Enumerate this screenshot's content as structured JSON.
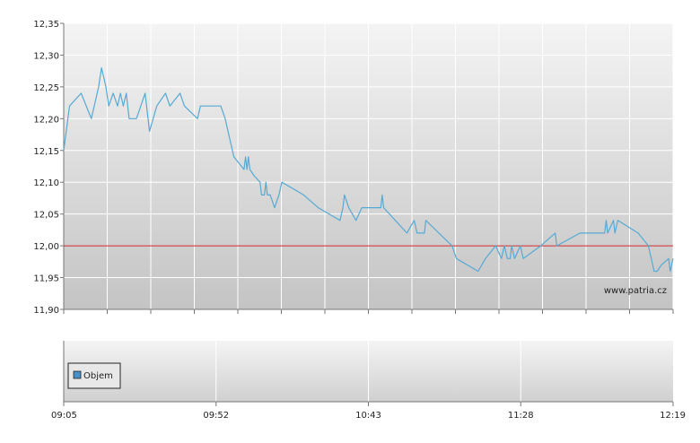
{
  "chart_data": [
    {
      "type": "line",
      "title": "",
      "xlabel": "",
      "ylabel": "",
      "ylim": [
        11.9,
        12.35
      ],
      "y_ticks": [
        "12,35",
        "12,30",
        "12,25",
        "12,20",
        "12,15",
        "12,10",
        "12,05",
        "12,00",
        "11,95",
        "11,90"
      ],
      "reference_line": {
        "y": 12.0,
        "color": "#cc2222"
      },
      "watermark": "www.patria.cz",
      "grid": true,
      "series": [
        {
          "color": "#55aad4",
          "points": [
            [
              0,
              12.15
            ],
            [
              4,
              12.22
            ],
            [
              12,
              12.24
            ],
            [
              19,
              12.2
            ],
            [
              24,
              12.25
            ],
            [
              26,
              12.28
            ],
            [
              28,
              12.26
            ],
            [
              29,
              12.25
            ],
            [
              31,
              12.22
            ],
            [
              34,
              12.24
            ],
            [
              37,
              12.22
            ],
            [
              39,
              12.24
            ],
            [
              41,
              12.22
            ],
            [
              43,
              12.24
            ],
            [
              45,
              12.2
            ],
            [
              50,
              12.2
            ],
            [
              53,
              12.22
            ],
            [
              56,
              12.24
            ],
            [
              59,
              12.18
            ],
            [
              64,
              12.22
            ],
            [
              70,
              12.24
            ],
            [
              73,
              12.22
            ],
            [
              80,
              12.24
            ],
            [
              83,
              12.22
            ],
            [
              92,
              12.2
            ],
            [
              94,
              12.22
            ],
            [
              101,
              12.22
            ],
            [
              108,
              12.22
            ],
            [
              111,
              12.2
            ],
            [
              113,
              12.18
            ],
            [
              117,
              12.14
            ],
            [
              124,
              12.12
            ],
            [
              125,
              12.14
            ],
            [
              126,
              12.12
            ],
            [
              127,
              12.14
            ],
            [
              128,
              12.12
            ],
            [
              131,
              12.11
            ],
            [
              135,
              12.1
            ],
            [
              136,
              12.08
            ],
            [
              138,
              12.08
            ],
            [
              139,
              12.1
            ],
            [
              140,
              12.08
            ],
            [
              142,
              12.08
            ],
            [
              145,
              12.06
            ],
            [
              148,
              12.08
            ],
            [
              150,
              12.1
            ],
            [
              165,
              12.08
            ],
            [
              175,
              12.06
            ],
            [
              190,
              12.04
            ],
            [
              192,
              12.06
            ],
            [
              193,
              12.08
            ],
            [
              196,
              12.06
            ],
            [
              201,
              12.04
            ],
            [
              205,
              12.06
            ],
            [
              218,
              12.06
            ],
            [
              219,
              12.08
            ],
            [
              220,
              12.06
            ],
            [
              228,
              12.04
            ],
            [
              236,
              12.02
            ],
            [
              241,
              12.04
            ],
            [
              243,
              12.02
            ],
            [
              246,
              12.02
            ],
            [
              248,
              12.02
            ],
            [
              249,
              12.04
            ],
            [
              258,
              12.02
            ],
            [
              267,
              12.0
            ],
            [
              270,
              11.98
            ],
            [
              285,
              11.96
            ],
            [
              290,
              11.98
            ],
            [
              297,
              12.0
            ],
            [
              301,
              11.98
            ],
            [
              303,
              12.0
            ],
            [
              305,
              11.98
            ],
            [
              307,
              11.98
            ],
            [
              308,
              12.0
            ],
            [
              310,
              11.98
            ],
            [
              314,
              12.0
            ],
            [
              316,
              11.98
            ],
            [
              328,
              12.0
            ],
            [
              338,
              12.02
            ],
            [
              339,
              12.0
            ],
            [
              355,
              12.02
            ],
            [
              372,
              12.02
            ],
            [
              373,
              12.04
            ],
            [
              374,
              12.02
            ],
            [
              378,
              12.04
            ],
            [
              379,
              12.02
            ],
            [
              381,
              12.04
            ],
            [
              395,
              12.02
            ],
            [
              402,
              12.0
            ],
            [
              404,
              11.98
            ],
            [
              406,
              11.96
            ],
            [
              408,
              11.96
            ],
            [
              411,
              11.97
            ],
            [
              416,
              11.98
            ],
            [
              417,
              11.96
            ],
            [
              419,
              11.98
            ]
          ]
        }
      ],
      "x_ticks": [
        "09:05",
        "09:52",
        "10:43",
        "11:28",
        "12:19"
      ]
    },
    {
      "type": "bar",
      "title": "",
      "legend": [
        "Objem"
      ],
      "legend_color": "#4a90c8",
      "series": [
        {
          "name": "Objem",
          "values": []
        }
      ],
      "x_ticks": [
        "09:05",
        "09:52",
        "10:43",
        "11:28",
        "12:19"
      ]
    }
  ]
}
